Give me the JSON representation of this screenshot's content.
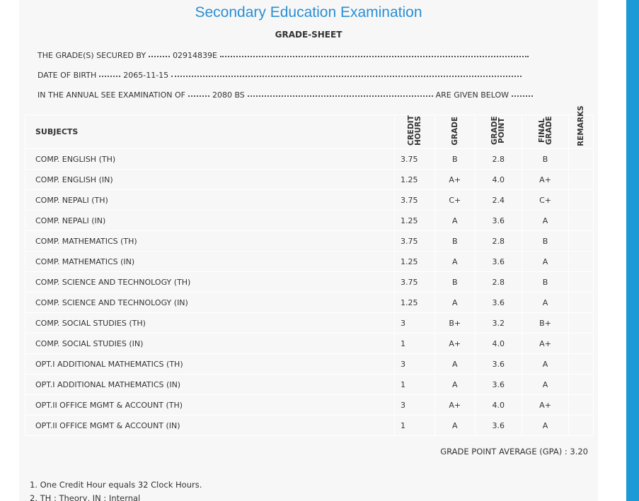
{
  "header": {
    "title": "Secondary Education Examination",
    "subtitle": "GRADE-SHEET"
  },
  "info": [
    {
      "label": "THE GRADE(S) SECURED BY",
      "value": "02914839E"
    },
    {
      "label": "DATE OF BIRTH",
      "value": "2065-11-15"
    },
    {
      "label": "IN THE ANNUAL SEE EXAMINATION OF",
      "value": "2080 BS",
      "suffix": "ARE GIVEN BELOW"
    }
  ],
  "table": {
    "columns": [
      "SUBJECTS",
      "CREDIT HOURS",
      "GRADE",
      "GRADE POINT",
      "FINAL GRADE",
      "REMARKS"
    ],
    "rows": [
      [
        "COMP. ENGLISH (TH)",
        "3.75",
        "B",
        "2.8",
        "B"
      ],
      [
        "COMP. ENGLISH (IN)",
        "1.25",
        "A+",
        "4.0",
        "A+"
      ],
      [
        "COMP. NEPALI (TH)",
        "3.75",
        "C+",
        "2.4",
        "C+"
      ],
      [
        "COMP. NEPALI (IN)",
        "1.25",
        "A",
        "3.6",
        "A"
      ],
      [
        "COMP. MATHEMATICS (TH)",
        "3.75",
        "B",
        "2.8",
        "B"
      ],
      [
        "COMP. MATHEMATICS (IN)",
        "1.25",
        "A",
        "3.6",
        "A"
      ],
      [
        "COMP. SCIENCE AND TECHNOLOGY (TH)",
        "3.75",
        "B",
        "2.8",
        "B"
      ],
      [
        "COMP. SCIENCE AND TECHNOLOGY (IN)",
        "1.25",
        "A",
        "3.6",
        "A"
      ],
      [
        "COMP. SOCIAL STUDIES (TH)",
        "3",
        "B+",
        "3.2",
        "B+"
      ],
      [
        "COMP. SOCIAL STUDIES (IN)",
        "1",
        "A+",
        "4.0",
        "A+"
      ],
      [
        "OPT.I ADDITIONAL MATHEMATICS (TH)",
        "3",
        "A",
        "3.6",
        "A"
      ],
      [
        "OPT.I ADDITIONAL MATHEMATICS (IN)",
        "1",
        "A",
        "3.6",
        "A"
      ],
      [
        "OPT.II OFFICE MGMT & ACCOUNT (TH)",
        "3",
        "A+",
        "4.0",
        "A+"
      ],
      [
        "OPT.II OFFICE MGMT & ACCOUNT (IN)",
        "1",
        "A",
        "3.6",
        "A"
      ]
    ]
  },
  "gpa": {
    "label": "GRADE POINT AVERAGE (GPA) :",
    "value": "3.20"
  },
  "notes": [
    "1. One Credit Hour equals 32 Clock Hours.",
    "2. TH : Theory, IN : Internal"
  ]
}
